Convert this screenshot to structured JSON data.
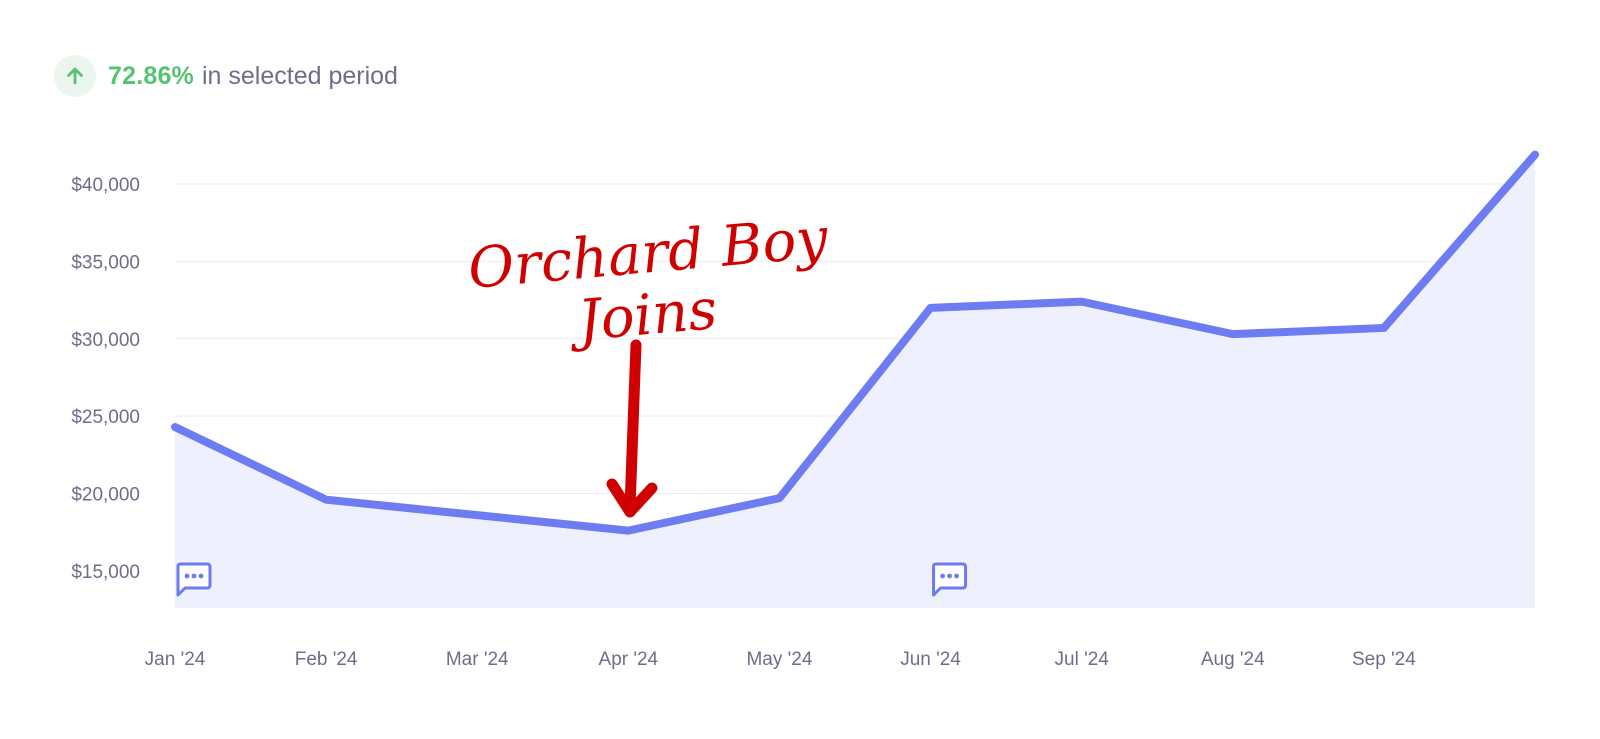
{
  "summary": {
    "change_value": "72.86%",
    "change_text": "in selected period",
    "direction_icon": "arrow-up-icon"
  },
  "annotation": {
    "line1": "Orchard Boy",
    "line2": "Joins",
    "color": "#d10000"
  },
  "comment_icons": [
    "Jan '24",
    "Jun '24"
  ],
  "colors": {
    "line": "#6d7cf0",
    "area": "#eef0fd",
    "positive": "#57c274",
    "muted_text": "#6d6e8a"
  },
  "chart_data": {
    "type": "area",
    "categories": [
      "Jan '24",
      "Feb '24",
      "Mar '24",
      "Apr '24",
      "May '24",
      "Jun '24",
      "Jul '24",
      "Aug '24",
      "Sep '24",
      ""
    ],
    "values": [
      24300,
      19600,
      18600,
      17600,
      19700,
      32000,
      32400,
      30300,
      30700,
      41900
    ],
    "y_ticks": [
      "$15,000",
      "$20,000",
      "$25,000",
      "$30,000",
      "$35,000",
      "$40,000"
    ],
    "y_tick_values": [
      15000,
      20000,
      25000,
      30000,
      35000,
      40000
    ],
    "ylim": [
      12600,
      42200
    ],
    "grid": true,
    "xlabel": "",
    "ylabel": ""
  }
}
